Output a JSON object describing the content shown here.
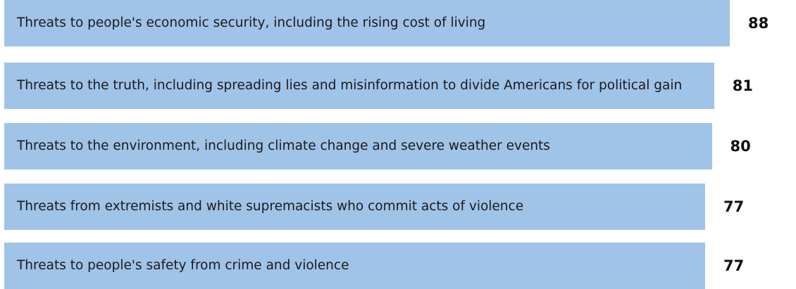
{
  "chart_data": {
    "type": "bar",
    "orientation": "horizontal",
    "color": "#a0c3e8",
    "categories": [
      "Threats to people's economic security, including the rising cost of living",
      "Threats to the truth, including spreading lies and misinformation to divide Americans for political gain",
      "Threats to the environment, including climate change and severe weather events",
      "Threats from extremists and white supremacists who commit acts of violence",
      "Threats to people's safety from crime and violence"
    ],
    "values": [
      88,
      81,
      80,
      77,
      77
    ]
  }
}
